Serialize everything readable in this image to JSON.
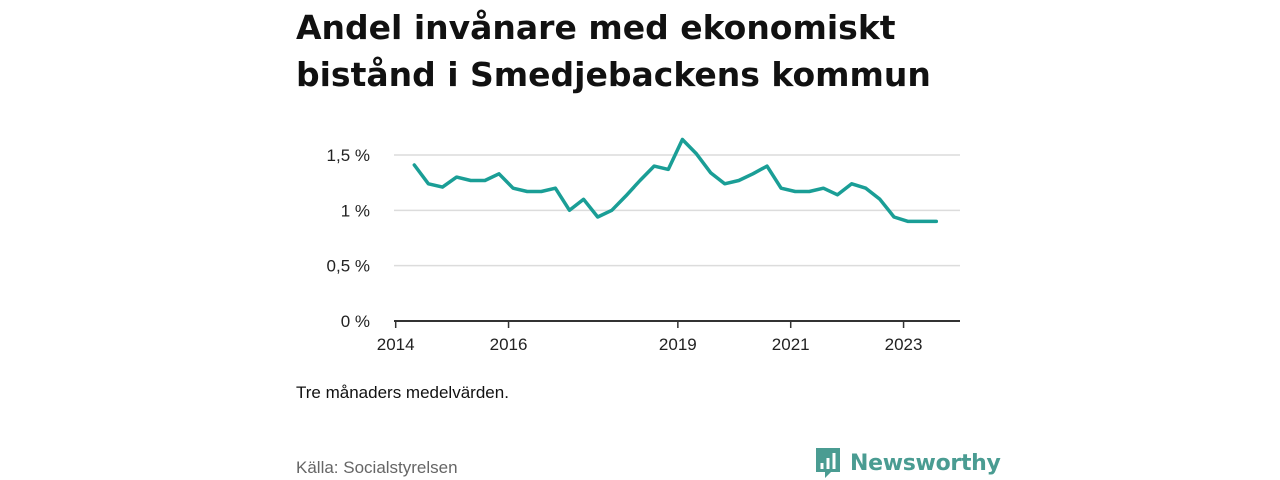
{
  "header": {
    "title_line1": "Andel invånare med ekonomiskt",
    "title_line2": "bistånd i Smedjebackens kommun"
  },
  "note": "Tre månaders medelvärden.",
  "source": "Källa: Socialstyrelsen",
  "brand": {
    "name": "Newsworthy",
    "color": "#4a9c92",
    "icon": "newsworthy-logo-icon"
  },
  "chart_data": {
    "type": "line",
    "title": "Andel invånare med ekonomiskt bistånd i Smedjebackens kommun",
    "xlabel": "",
    "ylabel": "",
    "ylim": [
      0,
      1.5
    ],
    "y_ticks": [
      {
        "value": 0,
        "label": "0 %"
      },
      {
        "value": 0.5,
        "label": "0,5 %"
      },
      {
        "value": 1,
        "label": "1 %"
      },
      {
        "value": 1.5,
        "label": "1,5 %"
      }
    ],
    "x_ticks": [
      {
        "value": 2014,
        "label": "2014"
      },
      {
        "value": 2016,
        "label": "2016"
      },
      {
        "value": 2019,
        "label": "2019"
      },
      {
        "value": 2021,
        "label": "2021"
      },
      {
        "value": 2023,
        "label": "2023"
      }
    ],
    "grid": true,
    "line_color": "#1a9e96",
    "series": [
      {
        "values": [
          {
            "x": 2014.33,
            "y": 1.41
          },
          {
            "x": 2014.58,
            "y": 1.24
          },
          {
            "x": 2014.83,
            "y": 1.21
          },
          {
            "x": 2015.08,
            "y": 1.3
          },
          {
            "x": 2015.33,
            "y": 1.27
          },
          {
            "x": 2015.58,
            "y": 1.27
          },
          {
            "x": 2015.83,
            "y": 1.33
          },
          {
            "x": 2016.08,
            "y": 1.2
          },
          {
            "x": 2016.33,
            "y": 1.17
          },
          {
            "x": 2016.58,
            "y": 1.17
          },
          {
            "x": 2016.83,
            "y": 1.2
          },
          {
            "x": 2017.08,
            "y": 1.0
          },
          {
            "x": 2017.33,
            "y": 1.1
          },
          {
            "x": 2017.58,
            "y": 0.94
          },
          {
            "x": 2017.83,
            "y": 1.0
          },
          {
            "x": 2018.08,
            "y": 1.13
          },
          {
            "x": 2018.33,
            "y": 1.27
          },
          {
            "x": 2018.58,
            "y": 1.4
          },
          {
            "x": 2018.83,
            "y": 1.37
          },
          {
            "x": 2019.08,
            "y": 1.64
          },
          {
            "x": 2019.33,
            "y": 1.51
          },
          {
            "x": 2019.58,
            "y": 1.34
          },
          {
            "x": 2019.83,
            "y": 1.24
          },
          {
            "x": 2020.08,
            "y": 1.27
          },
          {
            "x": 2020.33,
            "y": 1.33
          },
          {
            "x": 2020.58,
            "y": 1.4
          },
          {
            "x": 2020.83,
            "y": 1.2
          },
          {
            "x": 2021.08,
            "y": 1.17
          },
          {
            "x": 2021.33,
            "y": 1.17
          },
          {
            "x": 2021.58,
            "y": 1.2
          },
          {
            "x": 2021.83,
            "y": 1.14
          },
          {
            "x": 2022.08,
            "y": 1.24
          },
          {
            "x": 2022.33,
            "y": 1.2
          },
          {
            "x": 2022.58,
            "y": 1.1
          },
          {
            "x": 2022.83,
            "y": 0.94
          },
          {
            "x": 2023.08,
            "y": 0.9
          },
          {
            "x": 2023.33,
            "y": 0.9
          },
          {
            "x": 2023.58,
            "y": 0.9
          }
        ]
      }
    ]
  }
}
